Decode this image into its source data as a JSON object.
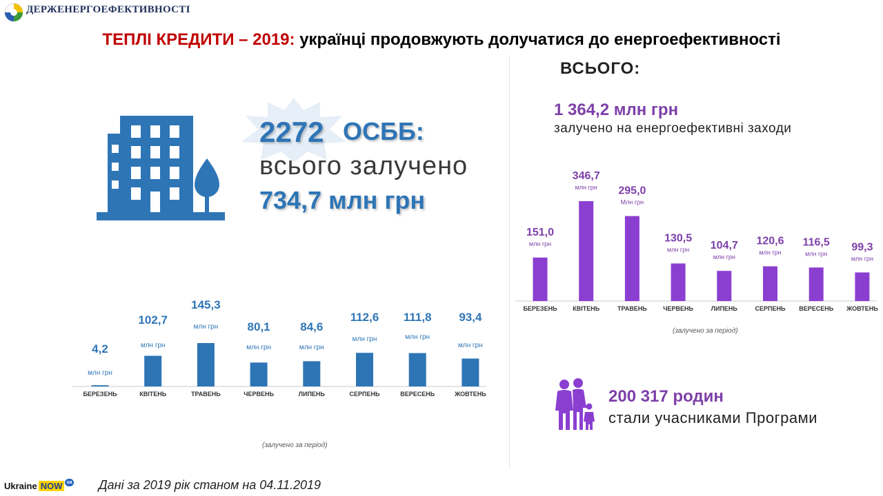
{
  "header": {
    "logo_text": "ДЕРЖЕНЕРГОЕФЕКТИВНОСТІ",
    "title_red": "ТЕПЛІ КРЕДИТИ – 2019:",
    "title_rest": "українці продовжують долучатися до енергоефективності"
  },
  "osbb": {
    "count": "2272",
    "label": "ОСББ:",
    "subtitle": "всього залучено",
    "total": "734,7 млн грн"
  },
  "overall": {
    "label": "ВСЬОГО:",
    "total": "1 364,2 млн грн",
    "subtitle": "залучено на енергоефективні заходи"
  },
  "families": {
    "count": "200 317 родин",
    "subtitle": "стали учасниками Програми"
  },
  "footer": {
    "brand_prefix": "Ukraine",
    "brand_now": "NOW",
    "brand_badge": "ua",
    "note": "Дані за 2019 рік станом на 04.11.2019"
  },
  "colors": {
    "osbb_bar": "#2e75b6",
    "total_bar": "#8b3fd1",
    "total_label": "#7d3fa8",
    "title_red": "#c00000"
  },
  "chart_data": [
    {
      "type": "bar",
      "categories": [
        "БЕРЕЗЕНЬ",
        "КВІТЕНЬ",
        "ТРАВЕНЬ",
        "ЧЕРВЕНЬ",
        "ЛИПЕНЬ",
        "СЕРПЕНЬ",
        "ВЕРЕСЕНЬ",
        "ЖОВТЕНЬ"
      ],
      "values": [
        4.2,
        102.7,
        145.3,
        80.1,
        84.6,
        112.6,
        111.8,
        93.4
      ],
      "value_labels": [
        "4,2",
        "102,7",
        "145,3",
        "80,1",
        "84,6",
        "112,6",
        "111,8",
        "93,4"
      ],
      "unit_labels": [
        "млн грн",
        "млн грн",
        "млн грн",
        "млн.грн",
        "млн грн",
        "млн грн",
        "млн грн",
        "млн грн"
      ],
      "caption": "(залучено за період)",
      "grid": false
    },
    {
      "type": "bar",
      "categories": [
        "БЕРЕЗЕНЬ",
        "КВІТЕНЬ",
        "ТРАВЕНЬ",
        "ЧЕРВЕНЬ",
        "ЛИПЕНЬ",
        "СЕРПЕНЬ",
        "ВЕРЕСЕНЬ",
        "ЖОВТЕНЬ"
      ],
      "values": [
        151.0,
        346.7,
        295.0,
        130.5,
        104.7,
        120.6,
        116.5,
        99.3
      ],
      "value_labels": [
        "151,0",
        "346,7",
        "295,0",
        "130,5",
        "104,7",
        "120,6",
        "116,5",
        "99,3"
      ],
      "unit_labels": [
        "млн грн",
        "млн грн",
        "Млн грн",
        "млн грн",
        "млн грн",
        "млн грн",
        "млн грн",
        "млн грн"
      ],
      "caption": "(залучено за період)",
      "grid": false
    }
  ]
}
